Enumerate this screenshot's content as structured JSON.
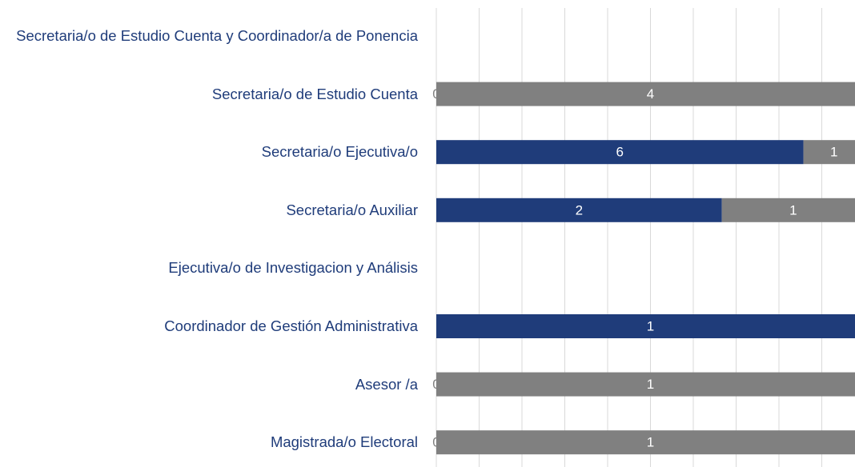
{
  "chart_data": {
    "type": "bar_stacked_percent_horizontal",
    "categories": [
      "Secretaria/o de Estudio Cuenta y Coordinador/a de Ponencia",
      "Secretaria/o de Estudio Cuenta",
      "Secretaria/o Ejecutiva/o",
      "Secretaria/o Auxiliar",
      "Ejecutiva/o de Investigacion y Análisis",
      "Coordinador de Gestión Administrativa",
      "Asesor /a",
      "Magistrada/o Electoral"
    ],
    "series": [
      {
        "color": "#1f3c7a",
        "values": [
          null,
          0,
          6,
          2,
          null,
          1,
          0,
          0
        ]
      },
      {
        "color": "#808080",
        "values": [
          null,
          4,
          1,
          1,
          null,
          null,
          1,
          1
        ]
      }
    ],
    "xlim": [
      0,
      100
    ],
    "xticks": [
      0,
      10,
      20,
      30,
      40,
      50,
      60,
      70,
      80,
      90,
      100
    ],
    "grid": true
  }
}
